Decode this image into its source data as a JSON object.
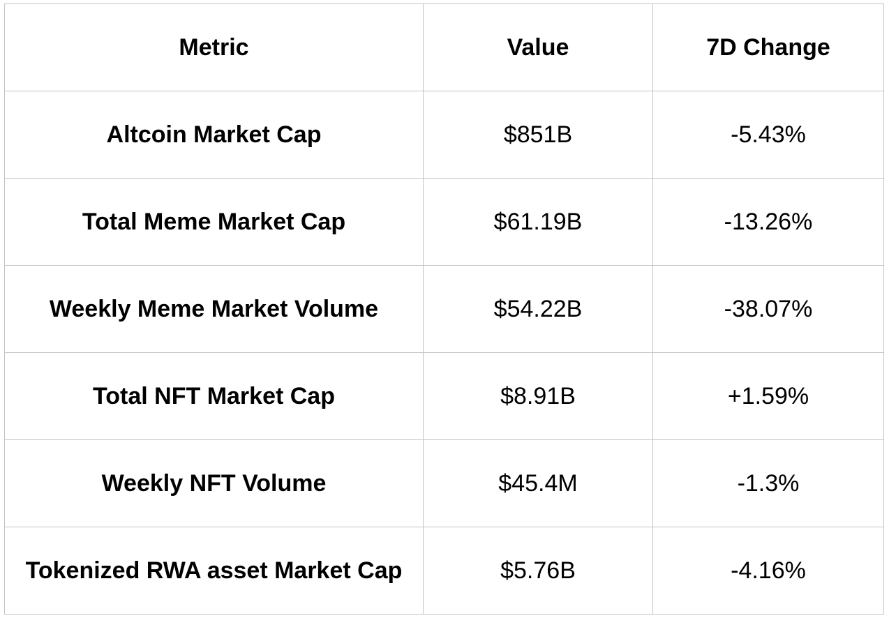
{
  "table": {
    "headers": {
      "metric": "Metric",
      "value": "Value",
      "change": "7D Change"
    },
    "rows": [
      {
        "metric": "Altcoin Market Cap",
        "value": "$851B",
        "change": "-5.43%"
      },
      {
        "metric": "Total Meme Market Cap",
        "value": "$61.19B",
        "change": "-13.26%"
      },
      {
        "metric": "Weekly Meme Market Volume",
        "value": "$54.22B",
        "change": "-38.07%"
      },
      {
        "metric": "Total NFT Market Cap",
        "value": "$8.91B",
        "change": "+1.59%"
      },
      {
        "metric": "Weekly NFT Volume",
        "value": "$45.4M",
        "change": "-1.3%"
      },
      {
        "metric": "Tokenized RWA asset Market Cap",
        "value": "$5.76B",
        "change": "-4.16%"
      }
    ]
  }
}
